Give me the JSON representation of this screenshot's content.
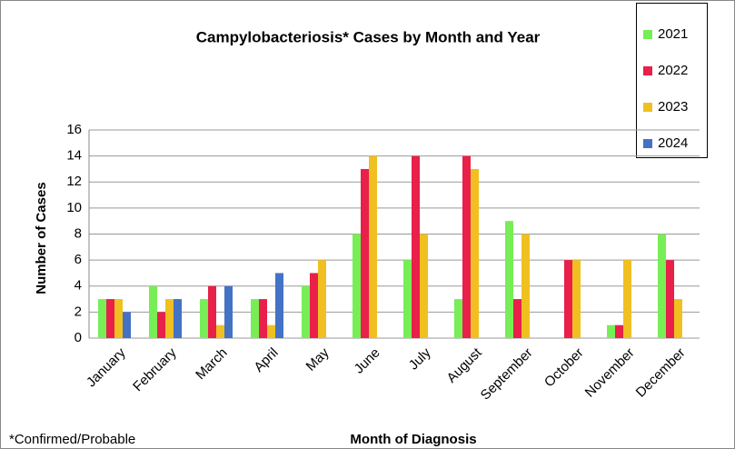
{
  "chart_data": {
    "type": "bar",
    "title": "Campylobacteriosis* Cases by Month and Year",
    "xlabel": "Month of Diagnosis",
    "ylabel": "Number of Cases",
    "footnote": "*Confirmed/Probable",
    "categories": [
      "January",
      "February",
      "March",
      "April",
      "May",
      "June",
      "July",
      "August",
      "September",
      "October",
      "November",
      "December"
    ],
    "series": [
      {
        "name": "2021",
        "color": "#77ee55",
        "values": [
          3,
          4,
          3,
          3,
          4,
          8,
          6,
          3,
          9,
          0,
          1,
          8
        ]
      },
      {
        "name": "2022",
        "color": "#e8204a",
        "values": [
          3,
          2,
          4,
          3,
          5,
          13,
          14,
          14,
          3,
          6,
          1,
          6
        ]
      },
      {
        "name": "2023",
        "color": "#f0c020",
        "values": [
          3,
          3,
          1,
          1,
          6,
          14,
          8,
          13,
          8,
          6,
          6,
          3
        ]
      },
      {
        "name": "2024",
        "color": "#4472c4",
        "values": [
          2,
          3,
          4,
          5,
          null,
          null,
          null,
          null,
          null,
          null,
          null,
          null
        ]
      }
    ],
    "ylim": [
      0,
      16
    ],
    "yticks": [
      0,
      2,
      4,
      6,
      8,
      10,
      12,
      14,
      16
    ],
    "grid": true,
    "legend": "top-right"
  }
}
